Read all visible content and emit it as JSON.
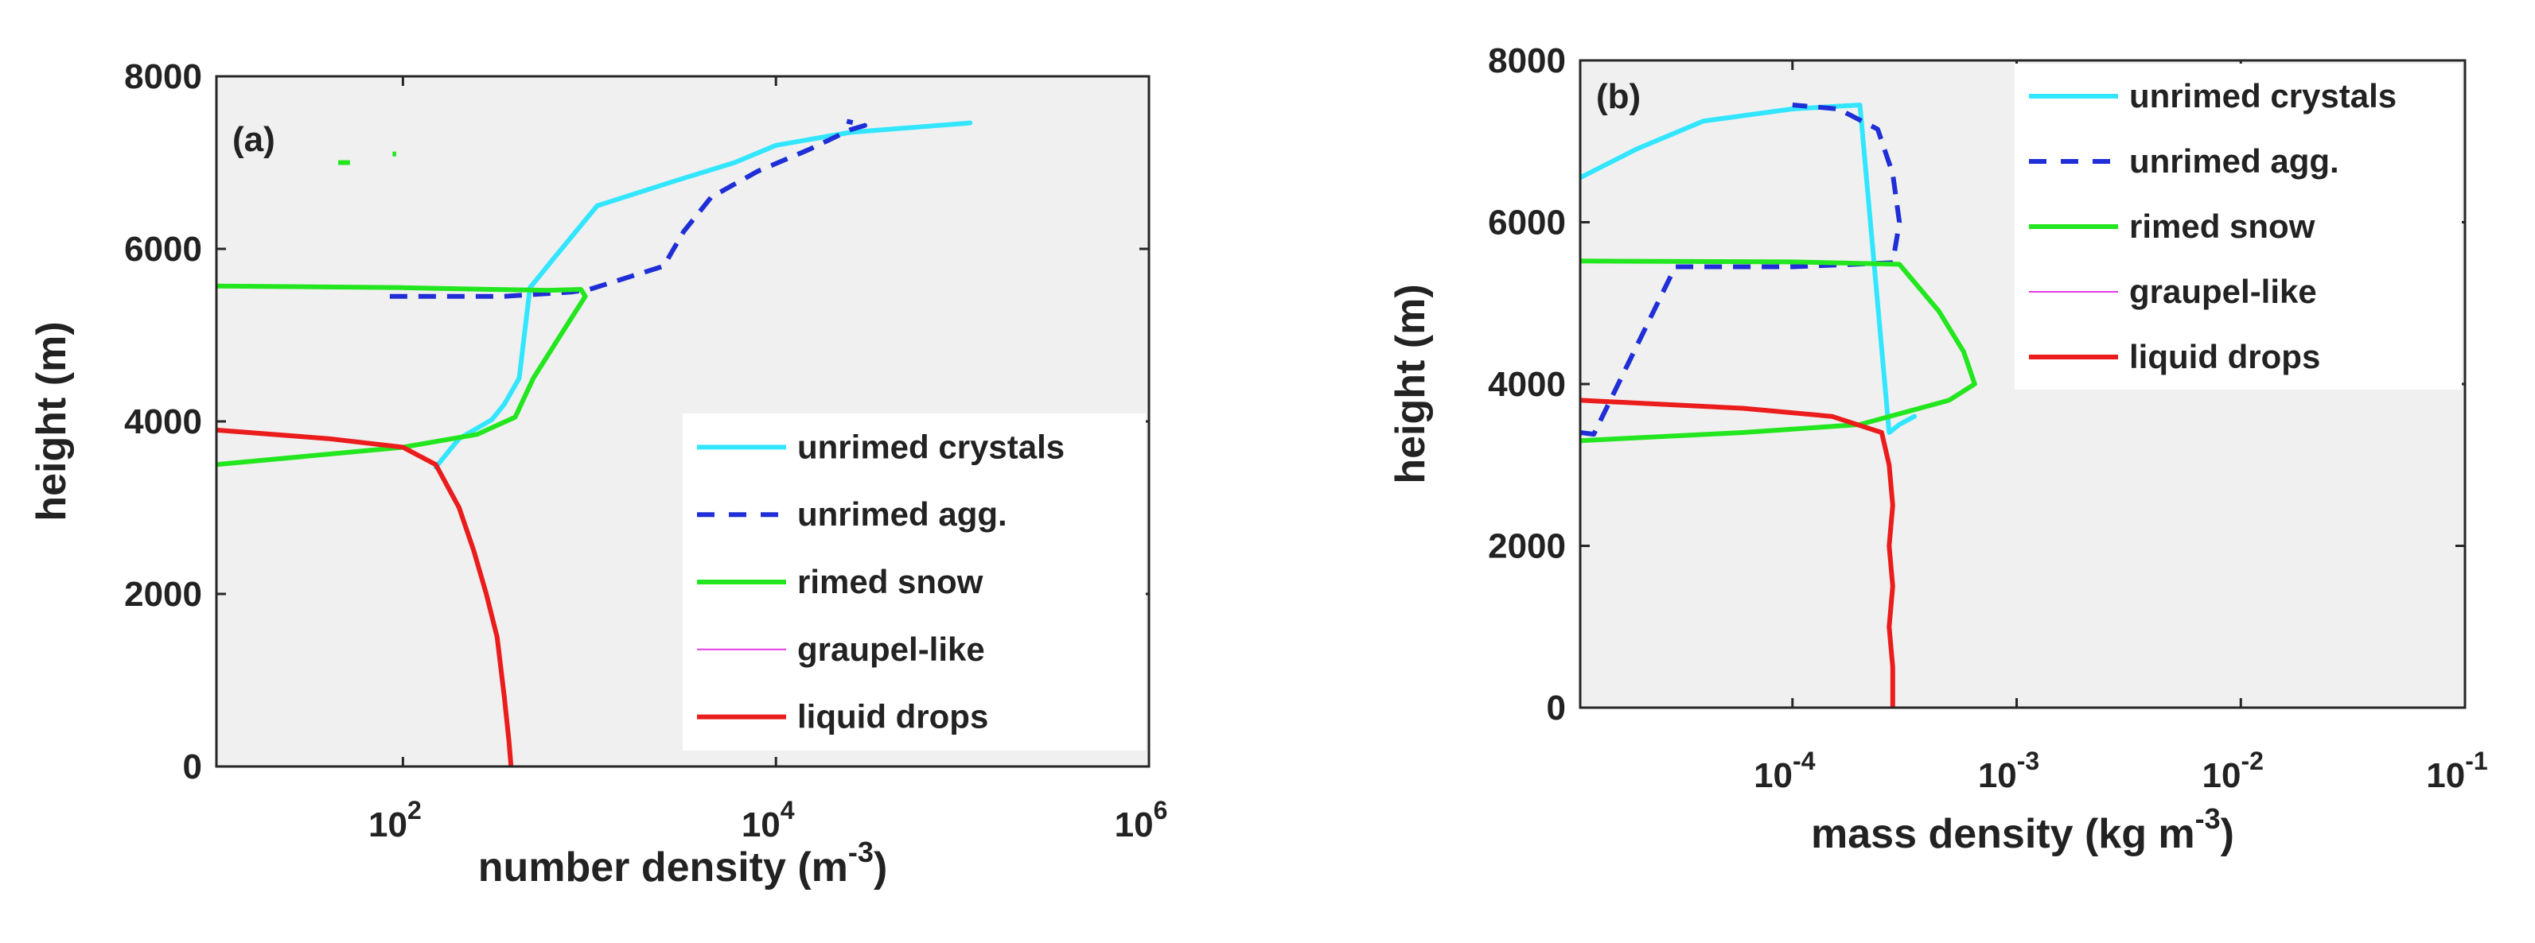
{
  "colors": {
    "plot_bg": "#f0f0f0",
    "axis": "#262626",
    "unrimed_crystals": "#33e6ff",
    "unrimed_agg": "#1f2ed6",
    "rimed_snow": "#22e61e",
    "graupel_like": "#e63ae6",
    "liquid_drops": "#ea1c1c"
  },
  "chart_data": [
    {
      "id": "a",
      "panel_label": "(a)",
      "type": "line",
      "xscale": "log",
      "xlim": [
        10,
        1000000
      ],
      "ylim": [
        0,
        8000
      ],
      "xticks": [
        {
          "value": 100,
          "base": "10",
          "exp": "2"
        },
        {
          "value": 10000,
          "base": "10",
          "exp": "4"
        },
        {
          "value": 1000000,
          "base": "10",
          "exp": "6"
        }
      ],
      "yticks": [
        {
          "value": 0,
          "label": "0"
        },
        {
          "value": 2000,
          "label": "2000"
        },
        {
          "value": 4000,
          "label": "4000"
        },
        {
          "value": 6000,
          "label": "6000"
        },
        {
          "value": 8000,
          "label": "8000"
        }
      ],
      "xlabel": {
        "text": "number density  (m",
        "sup": "-3",
        "end": ")"
      },
      "ylabel": "height  (m)",
      "legend_position": "bottom-right",
      "series": [
        {
          "name": "unrimed crystals",
          "color_key": "unrimed_crystals",
          "style": "solid",
          "x": [
            150,
            200,
            300,
            350,
            420,
            480,
            650,
            1100,
            3000,
            6000,
            10000,
            25000,
            110000
          ],
          "y": [
            3470,
            3800,
            4020,
            4200,
            4500,
            5550,
            5900,
            6500,
            6800,
            7000,
            7200,
            7350,
            7460
          ]
        },
        {
          "name": "unrimed agg.",
          "color_key": "unrimed_agg",
          "style": "dashed",
          "x": [
            85,
            350,
            800,
            1000,
            2500,
            3200,
            4500,
            8000,
            15000,
            25000,
            30000,
            24000
          ],
          "y": [
            5450,
            5450,
            5500,
            5530,
            5800,
            6200,
            6600,
            6900,
            7150,
            7380,
            7430,
            7480
          ]
        },
        {
          "name": "rimed snow",
          "color_key": "rimed_snow",
          "style": "solid",
          "x": [
            10,
            100,
            300,
            600,
            900,
            950,
            700,
            500,
            400,
            250,
            100,
            10
          ],
          "y": [
            5570,
            5550,
            5530,
            5520,
            5530,
            5450,
            5000,
            4500,
            4050,
            3850,
            3700,
            3500
          ]
        },
        {
          "name": "graupel-like",
          "color_key": "graupel_like",
          "style": "solid",
          "x": [],
          "y": []
        },
        {
          "name": "liquid drops",
          "color_key": "liquid_drops",
          "style": "solid",
          "x": [
            10,
            40,
            100,
            150,
            200,
            240,
            280,
            320,
            350,
            370,
            380
          ],
          "y": [
            3900,
            3800,
            3700,
            3500,
            3000,
            2500,
            2000,
            1500,
            800,
            300,
            0
          ]
        }
      ],
      "stray_marks": [
        {
          "color_key": "rimed_snow",
          "x": [
            45,
            52
          ],
          "y": [
            7000,
            7000
          ]
        },
        {
          "color_key": "rimed_snow",
          "x": [
            88,
            92
          ],
          "y": [
            7100,
            7100
          ]
        }
      ]
    },
    {
      "id": "b",
      "panel_label": "(b)",
      "type": "line",
      "xscale": "log",
      "xlim": [
        1.13e-05,
        0.1
      ],
      "ylim": [
        0,
        8000
      ],
      "xticks": [
        {
          "value": 0.0001,
          "base": "10",
          "exp": "-4"
        },
        {
          "value": 0.001,
          "base": "10",
          "exp": "-3"
        },
        {
          "value": 0.01,
          "base": "10",
          "exp": "-2"
        },
        {
          "value": 0.1,
          "base": "10",
          "exp": "-1"
        }
      ],
      "yticks": [
        {
          "value": 0,
          "label": "0"
        },
        {
          "value": 2000,
          "label": "2000"
        },
        {
          "value": 4000,
          "label": "4000"
        },
        {
          "value": 6000,
          "label": "6000"
        },
        {
          "value": 8000,
          "label": "8000"
        }
      ],
      "xlabel": {
        "text": "mass density  (kg m",
        "sup": "-3",
        "end": ")"
      },
      "ylabel": "height  (m)",
      "legend_position": "top-right",
      "series": [
        {
          "name": "unrimed crystals",
          "color_key": "unrimed_crystals",
          "style": "solid",
          "x": [
            1.13e-05,
            2e-05,
            4e-05,
            0.0001,
            0.0002,
            0.00027,
            0.0003,
            0.00035
          ],
          "y": [
            6550,
            6900,
            7250,
            7400,
            7450,
            3400,
            3500,
            3600
          ]
        },
        {
          "name": "unrimed agg.",
          "color_key": "unrimed_agg",
          "style": "dashed",
          "x": [
            1.13e-05,
            1.3e-05,
            3e-05,
            0.0001,
            0.00028,
            0.0003,
            0.00028,
            0.00024,
            0.00016,
            0.0001
          ],
          "y": [
            3400,
            3380,
            5450,
            5450,
            5500,
            6000,
            6600,
            7150,
            7400,
            7450
          ]
        },
        {
          "name": "rimed snow",
          "color_key": "rimed_snow",
          "style": "solid",
          "x": [
            1.13e-05,
            0.0001,
            0.0003,
            0.00045,
            0.00058,
            0.00065,
            0.0005,
            0.0002,
            6e-05,
            1.13e-05
          ],
          "y": [
            5520,
            5510,
            5480,
            4900,
            4400,
            4000,
            3800,
            3500,
            3400,
            3300
          ]
        },
        {
          "name": "graupel-like",
          "color_key": "graupel_like",
          "style": "solid",
          "x": [],
          "y": []
        },
        {
          "name": "liquid drops",
          "color_key": "liquid_drops",
          "style": "solid",
          "x": [
            1.13e-05,
            6e-05,
            0.00015,
            0.00025,
            0.00027,
            0.00028,
            0.00027,
            0.00028,
            0.00027,
            0.00028,
            0.00028
          ],
          "y": [
            3800,
            3700,
            3600,
            3400,
            3000,
            2500,
            2000,
            1500,
            1000,
            500,
            0
          ]
        }
      ],
      "stray_marks": []
    }
  ]
}
